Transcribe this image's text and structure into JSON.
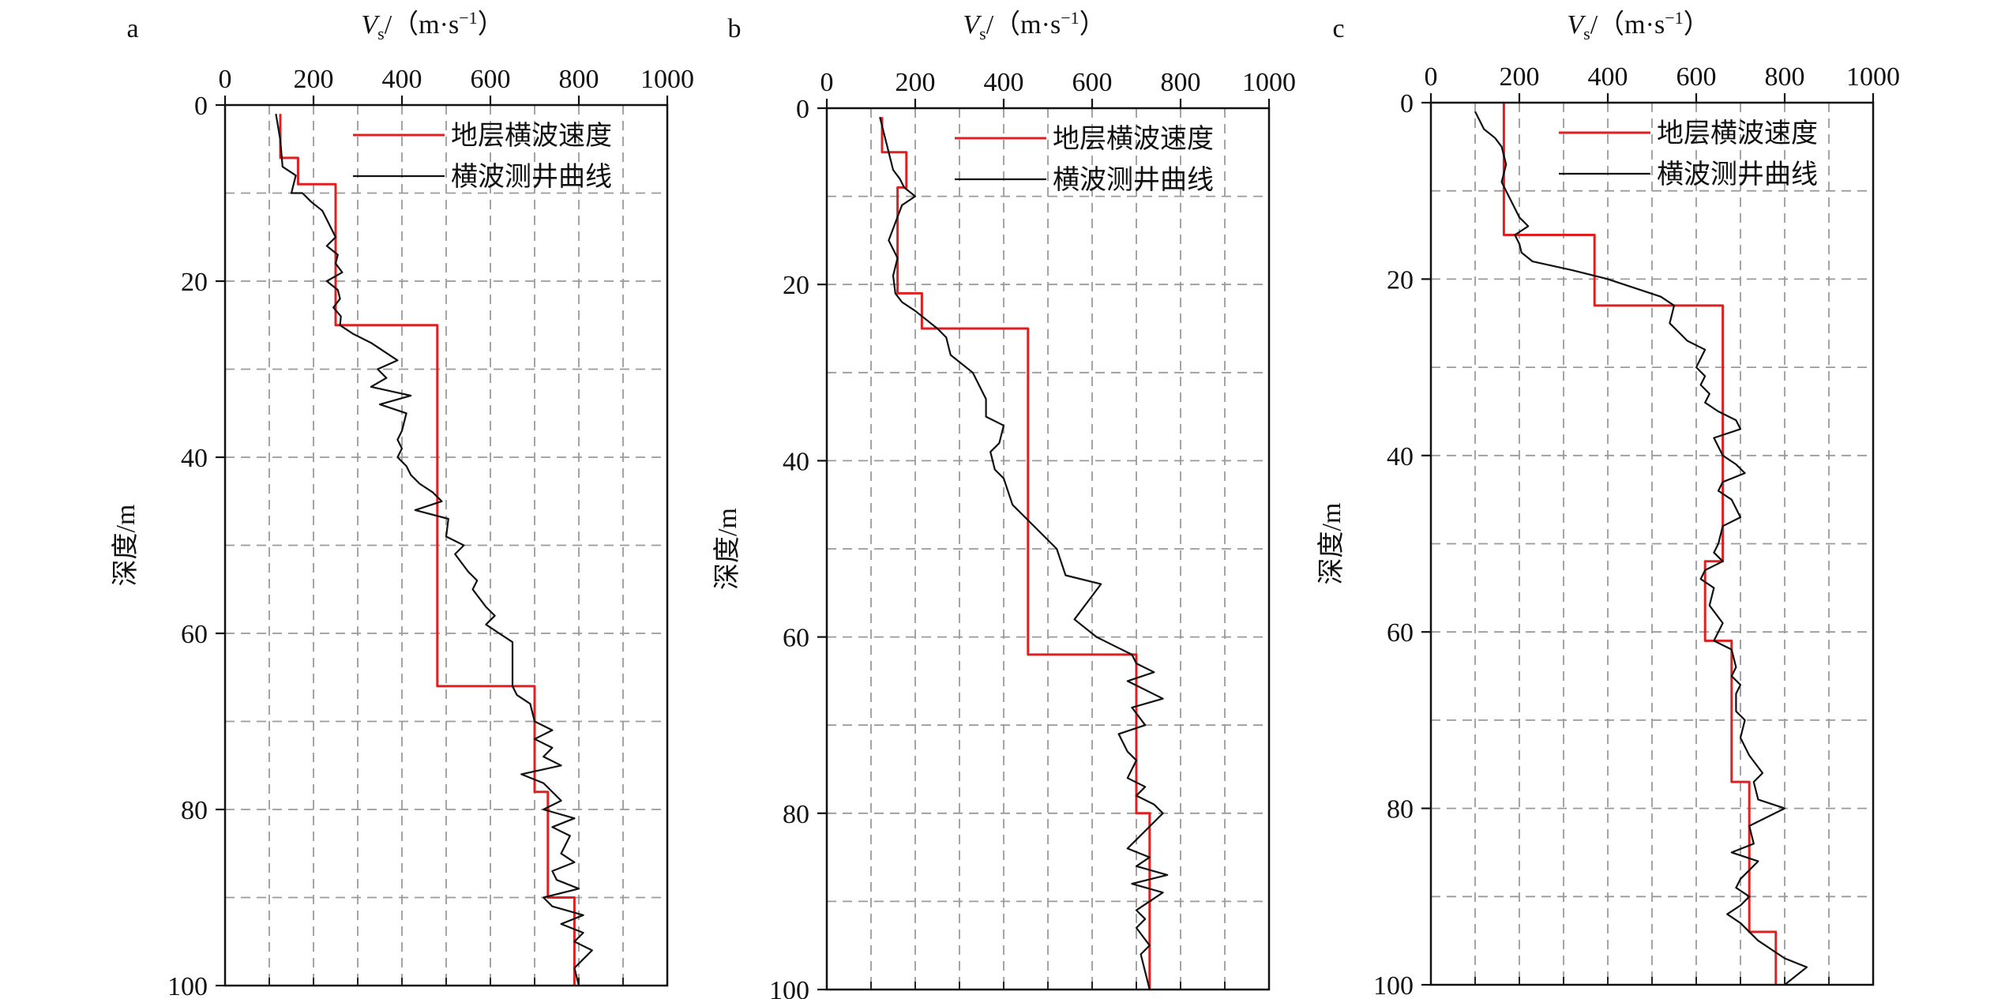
{
  "colors": {
    "layer": "#e02020",
    "logging": "#111111",
    "grid": "#9a9a9a"
  },
  "x_axis": {
    "symbol": "V",
    "subscript": "s",
    "unit_open": "/（m·s",
    "unit_exp": "−1",
    "unit_close": "）"
  },
  "y_axis": {
    "label": "深度/m"
  },
  "legend": {
    "layer": "地层横波速度",
    "logging": "横波测井曲线"
  },
  "chart_data": [
    {
      "panel": "a",
      "type": "line",
      "xlim": [
        0,
        1000
      ],
      "ylim": [
        100,
        0
      ],
      "xticks": [
        0,
        200,
        400,
        600,
        800,
        1000
      ],
      "yticks": [
        0,
        20,
        40,
        60,
        80,
        100
      ],
      "grid": true,
      "legend_position": "top-right",
      "series": [
        {
          "name": "地层横波速度",
          "color": "#e02020",
          "points": [
            [
              125,
              1
            ],
            [
              125,
              6
            ],
            [
              165,
              6
            ],
            [
              165,
              9
            ],
            [
              250,
              9
            ],
            [
              250,
              25
            ],
            [
              480,
              25
            ],
            [
              480,
              66
            ],
            [
              700,
              66
            ],
            [
              700,
              78
            ],
            [
              730,
              78
            ],
            [
              730,
              90
            ],
            [
              790,
              90
            ],
            [
              790,
              100
            ]
          ]
        },
        {
          "name": "横波测井曲线",
          "color": "#111111",
          "points": [
            [
              115,
              1
            ],
            [
              125,
              4
            ],
            [
              130,
              7
            ],
            [
              160,
              8
            ],
            [
              150,
              10
            ],
            [
              175,
              10
            ],
            [
              195,
              11
            ],
            [
              220,
              12
            ],
            [
              240,
              14
            ],
            [
              250,
              15
            ],
            [
              230,
              16
            ],
            [
              255,
              17
            ],
            [
              250,
              18
            ],
            [
              265,
              19
            ],
            [
              230,
              20
            ],
            [
              255,
              21
            ],
            [
              260,
              22
            ],
            [
              245,
              23
            ],
            [
              262,
              24
            ],
            [
              260,
              25
            ],
            [
              290,
              26
            ],
            [
              330,
              27
            ],
            [
              390,
              29
            ],
            [
              345,
              30
            ],
            [
              365,
              31
            ],
            [
              330,
              32
            ],
            [
              420,
              33
            ],
            [
              350,
              34
            ],
            [
              410,
              35
            ],
            [
              400,
              37
            ],
            [
              390,
              38
            ],
            [
              400,
              39
            ],
            [
              390,
              40
            ],
            [
              410,
              41
            ],
            [
              420,
              42
            ],
            [
              440,
              43
            ],
            [
              470,
              44
            ],
            [
              490,
              45
            ],
            [
              430,
              46
            ],
            [
              505,
              47
            ],
            [
              500,
              49
            ],
            [
              540,
              50
            ],
            [
              520,
              51
            ],
            [
              550,
              53
            ],
            [
              570,
              54
            ],
            [
              560,
              55
            ],
            [
              590,
              57
            ],
            [
              610,
              58
            ],
            [
              590,
              59
            ],
            [
              620,
              60
            ],
            [
              650,
              61
            ],
            [
              650,
              64
            ],
            [
              650,
              66
            ],
            [
              660,
              67
            ],
            [
              690,
              68
            ],
            [
              700,
              70
            ],
            [
              740,
              71
            ],
            [
              700,
              72
            ],
            [
              740,
              73
            ],
            [
              720,
              74
            ],
            [
              760,
              75
            ],
            [
              670,
              76
            ],
            [
              720,
              77
            ],
            [
              760,
              79
            ],
            [
              720,
              80
            ],
            [
              790,
              81
            ],
            [
              740,
              82
            ],
            [
              780,
              83
            ],
            [
              760,
              85
            ],
            [
              790,
              86
            ],
            [
              740,
              87
            ],
            [
              750,
              88
            ],
            [
              800,
              89
            ],
            [
              720,
              90
            ],
            [
              740,
              91
            ],
            [
              810,
              92
            ],
            [
              760,
              93
            ],
            [
              810,
              94
            ],
            [
              790,
              95
            ],
            [
              830,
              96
            ],
            [
              790,
              98
            ],
            [
              800,
              100
            ]
          ]
        }
      ]
    },
    {
      "panel": "b",
      "type": "line",
      "xlim": [
        0,
        1000
      ],
      "ylim": [
        100,
        0
      ],
      "xticks": [
        0,
        200,
        400,
        600,
        800,
        1000
      ],
      "yticks": [
        0,
        20,
        40,
        60,
        80,
        100
      ],
      "grid": true,
      "legend_position": "top-right",
      "series": [
        {
          "name": "地层横波速度",
          "color": "#e02020",
          "points": [
            [
              125,
              1
            ],
            [
              125,
              5
            ],
            [
              180,
              5
            ],
            [
              180,
              9
            ],
            [
              160,
              9
            ],
            [
              160,
              21
            ],
            [
              215,
              21
            ],
            [
              215,
              25
            ],
            [
              455,
              25
            ],
            [
              455,
              62
            ],
            [
              700,
              62
            ],
            [
              700,
              80
            ],
            [
              730,
              80
            ],
            [
              730,
              100
            ]
          ]
        },
        {
          "name": "横波测井曲线",
          "color": "#111111",
          "points": [
            [
              120,
              1
            ],
            [
              130,
              3
            ],
            [
              140,
              5
            ],
            [
              150,
              7
            ],
            [
              165,
              8
            ],
            [
              175,
              9
            ],
            [
              200,
              10
            ],
            [
              170,
              11
            ],
            [
              155,
              13
            ],
            [
              140,
              15
            ],
            [
              160,
              17
            ],
            [
              150,
              19
            ],
            [
              155,
              21
            ],
            [
              170,
              22
            ],
            [
              200,
              23
            ],
            [
              250,
              25
            ],
            [
              270,
              26
            ],
            [
              280,
              28
            ],
            [
              330,
              30
            ],
            [
              360,
              33
            ],
            [
              360,
              35
            ],
            [
              400,
              36
            ],
            [
              390,
              38
            ],
            [
              370,
              39
            ],
            [
              380,
              41
            ],
            [
              400,
              42
            ],
            [
              420,
              45
            ],
            [
              460,
              47
            ],
            [
              520,
              50
            ],
            [
              540,
              53
            ],
            [
              620,
              54
            ],
            [
              590,
              56
            ],
            [
              560,
              58
            ],
            [
              610,
              60
            ],
            [
              650,
              61
            ],
            [
              690,
              62
            ],
            [
              700,
              63
            ],
            [
              740,
              64
            ],
            [
              680,
              65
            ],
            [
              760,
              67
            ],
            [
              690,
              68
            ],
            [
              720,
              70
            ],
            [
              660,
              71
            ],
            [
              680,
              73
            ],
            [
              700,
              74
            ],
            [
              680,
              76
            ],
            [
              720,
              77
            ],
            [
              700,
              78
            ],
            [
              740,
              79
            ],
            [
              760,
              80
            ],
            [
              740,
              81
            ],
            [
              700,
              83
            ],
            [
              680,
              84
            ],
            [
              730,
              85
            ],
            [
              700,
              86
            ],
            [
              770,
              87
            ],
            [
              690,
              88
            ],
            [
              760,
              89
            ],
            [
              700,
              91
            ],
            [
              720,
              92
            ],
            [
              700,
              93
            ],
            [
              730,
              95
            ],
            [
              710,
              96
            ],
            [
              720,
              98
            ],
            [
              730,
              100
            ]
          ]
        }
      ]
    },
    {
      "panel": "c",
      "type": "line",
      "xlim": [
        0,
        1000
      ],
      "ylim": [
        100,
        0
      ],
      "xticks": [
        0,
        200,
        400,
        600,
        800,
        1000
      ],
      "yticks": [
        0,
        20,
        40,
        60,
        80,
        100
      ],
      "grid": true,
      "legend_position": "top-right",
      "series": [
        {
          "name": "地层横波速度",
          "color": "#e02020",
          "points": [
            [
              165,
              0
            ],
            [
              165,
              15
            ],
            [
              370,
              15
            ],
            [
              370,
              23
            ],
            [
              660,
              23
            ],
            [
              660,
              52
            ],
            [
              620,
              52
            ],
            [
              620,
              61
            ],
            [
              680,
              61
            ],
            [
              680,
              77
            ],
            [
              720,
              77
            ],
            [
              720,
              94
            ],
            [
              780,
              94
            ],
            [
              780,
              100
            ]
          ]
        },
        {
          "name": "横波测井曲线",
          "color": "#111111",
          "points": [
            [
              100,
              1
            ],
            [
              120,
              3
            ],
            [
              145,
              4
            ],
            [
              160,
              5
            ],
            [
              170,
              7
            ],
            [
              160,
              9
            ],
            [
              170,
              10
            ],
            [
              190,
              12
            ],
            [
              200,
              13
            ],
            [
              220,
              14
            ],
            [
              190,
              15
            ],
            [
              200,
              16
            ],
            [
              205,
              17
            ],
            [
              230,
              18
            ],
            [
              320,
              19
            ],
            [
              400,
              20
            ],
            [
              460,
              21
            ],
            [
              520,
              22
            ],
            [
              550,
              23
            ],
            [
              540,
              25
            ],
            [
              560,
              26
            ],
            [
              580,
              27
            ],
            [
              620,
              28
            ],
            [
              600,
              30
            ],
            [
              620,
              31
            ],
            [
              610,
              32
            ],
            [
              630,
              33
            ],
            [
              620,
              34
            ],
            [
              650,
              35
            ],
            [
              690,
              36
            ],
            [
              700,
              37
            ],
            [
              640,
              38
            ],
            [
              660,
              40
            ],
            [
              690,
              41
            ],
            [
              710,
              42
            ],
            [
              660,
              43
            ],
            [
              650,
              44
            ],
            [
              680,
              45
            ],
            [
              700,
              47
            ],
            [
              660,
              48
            ],
            [
              650,
              50
            ],
            [
              640,
              51
            ],
            [
              660,
              52
            ],
            [
              620,
              53
            ],
            [
              610,
              54
            ],
            [
              640,
              55
            ],
            [
              630,
              57
            ],
            [
              660,
              59
            ],
            [
              640,
              61
            ],
            [
              680,
              62
            ],
            [
              690,
              64
            ],
            [
              680,
              65
            ],
            [
              700,
              66
            ],
            [
              690,
              67
            ],
            [
              690,
              69
            ],
            [
              710,
              70
            ],
            [
              700,
              72
            ],
            [
              720,
              74
            ],
            [
              750,
              76
            ],
            [
              730,
              77
            ],
            [
              740,
              79
            ],
            [
              800,
              80
            ],
            [
              720,
              82
            ],
            [
              730,
              84
            ],
            [
              680,
              85
            ],
            [
              740,
              86
            ],
            [
              720,
              87
            ],
            [
              700,
              88
            ],
            [
              690,
              89
            ],
            [
              720,
              90
            ],
            [
              700,
              91
            ],
            [
              670,
              92
            ],
            [
              700,
              93
            ],
            [
              740,
              95
            ],
            [
              800,
              97
            ],
            [
              850,
              98
            ],
            [
              800,
              100
            ]
          ]
        }
      ]
    }
  ]
}
